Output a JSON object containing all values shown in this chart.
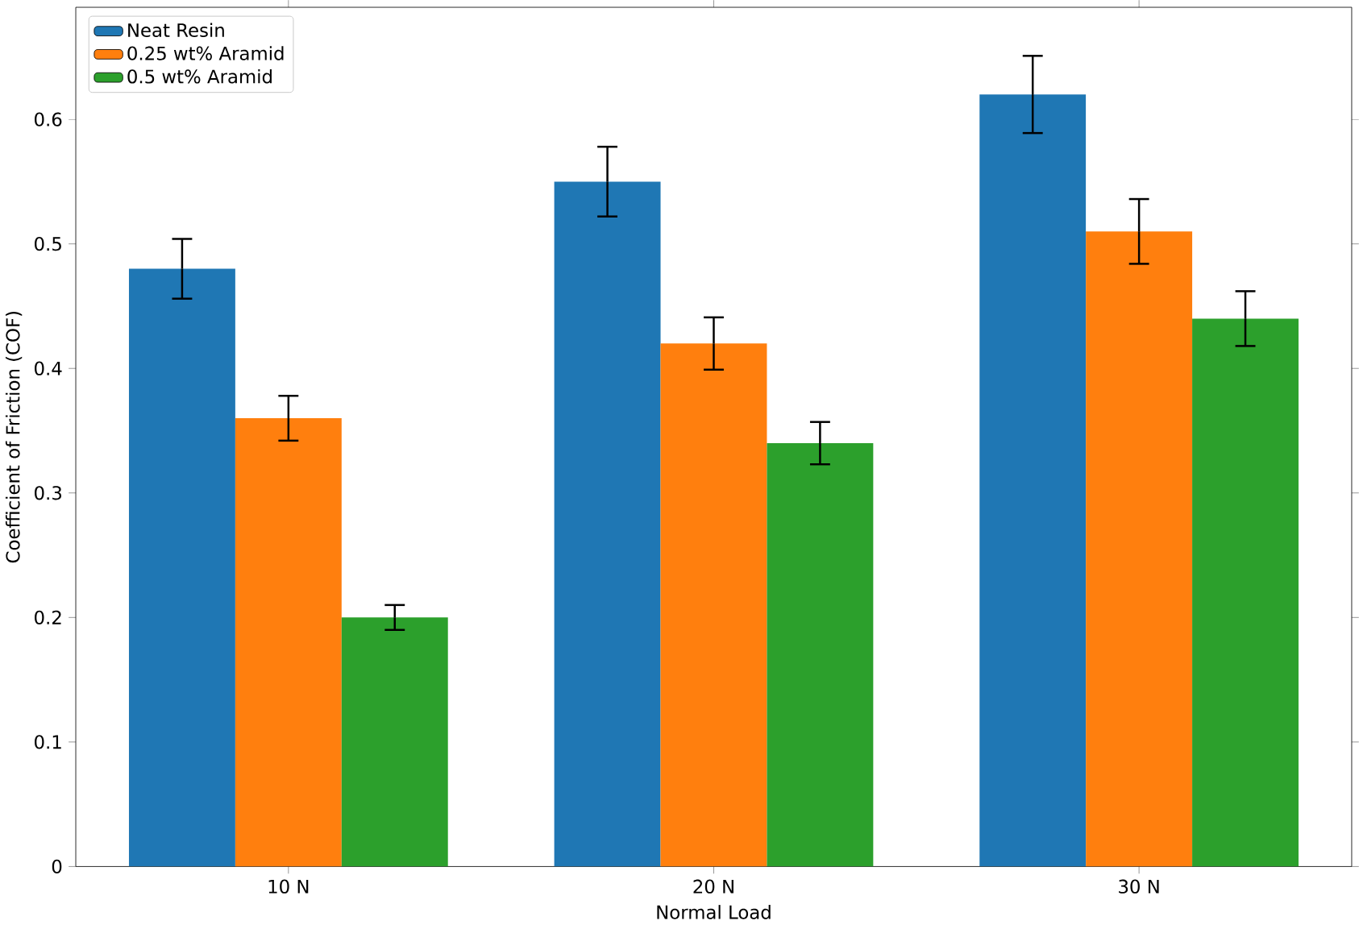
{
  "chart_data": {
    "type": "bar",
    "xlabel": "Normal Load",
    "ylabel": "Coefficient of Friction (COF)",
    "categories": [
      "10 N",
      "20 N",
      "30 N"
    ],
    "series": [
      {
        "name": "Neat Resin",
        "color": "#1f77b4",
        "values": [
          0.48,
          0.55,
          0.62
        ],
        "errors": [
          0.024,
          0.028,
          0.031
        ]
      },
      {
        "name": "0.25 wt% Aramid",
        "color": "#ff7f0e",
        "values": [
          0.36,
          0.42,
          0.51
        ],
        "errors": [
          0.018,
          0.021,
          0.026
        ]
      },
      {
        "name": "0.5 wt% Aramid",
        "color": "#2ca02c",
        "values": [
          0.2,
          0.34,
          0.44
        ],
        "errors": [
          0.01,
          0.017,
          0.022
        ]
      }
    ],
    "ylim": [
      0,
      0.69
    ],
    "yticks": [
      0,
      0.1,
      0.2,
      0.3,
      0.4,
      0.5,
      0.6
    ],
    "legend": "top left",
    "grid": false
  }
}
